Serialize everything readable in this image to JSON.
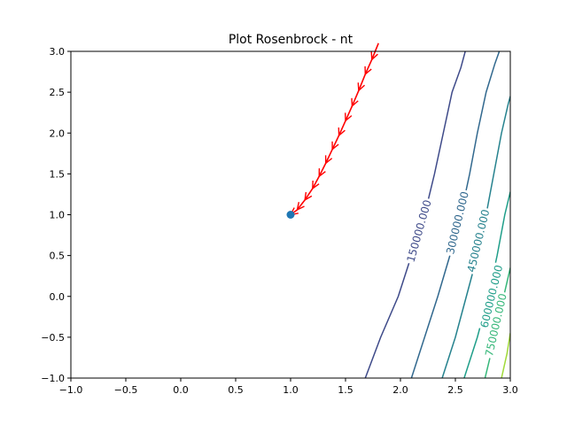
{
  "chart_data": {
    "type": "line",
    "title": "Plot Rosenbrock - nt",
    "xlabel": "",
    "ylabel": "",
    "xlim": [
      -1.0,
      3.0
    ],
    "ylim": [
      -1.0,
      3.0
    ],
    "x_ticks": [
      "−1.0",
      "−0.5",
      "0.0",
      "0.5",
      "1.0",
      "1.5",
      "2.0",
      "2.5",
      "3.0"
    ],
    "x_tick_values": [
      -1.0,
      -0.5,
      0.0,
      0.5,
      1.0,
      1.5,
      2.0,
      2.5,
      3.0
    ],
    "y_ticks": [
      "−1.0",
      "−0.5",
      "0.0",
      "0.5",
      "1.0",
      "1.5",
      "2.0",
      "2.5",
      "3.0"
    ],
    "y_tick_values": [
      -1.0,
      -0.5,
      0.0,
      0.5,
      1.0,
      1.5,
      2.0,
      2.5,
      3.0
    ],
    "grid": false,
    "contours": [
      {
        "label": "150000.000",
        "color": "#3e4a89",
        "x": [
          1.68,
          1.82,
          1.98,
          2.1,
          2.22,
          2.31,
          2.39,
          2.47,
          2.55,
          2.59
        ],
        "y": [
          -1.0,
          -0.5,
          0.0,
          0.5,
          1.0,
          1.5,
          2.0,
          2.5,
          2.8,
          3.0
        ],
        "label_at": [
          2.17,
          0.8
        ]
      },
      {
        "label": "300000.000",
        "color": "#31688e",
        "x": [
          2.1,
          2.22,
          2.34,
          2.45,
          2.55,
          2.63,
          2.7,
          2.78,
          2.86,
          2.9
        ],
        "y": [
          -1.0,
          -0.5,
          0.0,
          0.5,
          1.0,
          1.5,
          2.0,
          2.5,
          2.85,
          3.0
        ],
        "label_at": [
          2.52,
          0.9
        ]
      },
      {
        "label": "450000.000",
        "color": "#26828e",
        "x": [
          2.38,
          2.5,
          2.6,
          2.7,
          2.78,
          2.85,
          2.92,
          2.98,
          3.0
        ],
        "y": [
          -1.0,
          -0.5,
          0.0,
          0.5,
          1.0,
          1.5,
          2.0,
          2.35,
          2.45
        ],
        "label_at": [
          2.71,
          0.68
        ]
      },
      {
        "label": "600000.000",
        "color": "#1f9e89",
        "x": [
          2.58,
          2.7,
          2.8,
          2.88,
          2.95,
          3.0
        ],
        "y": [
          -1.0,
          -0.5,
          0.0,
          0.5,
          1.0,
          1.28
        ],
        "label_at": [
          2.83,
          0.0
        ]
      },
      {
        "label": "750000.000",
        "color": "#35b779",
        "x": [
          2.77,
          2.86,
          2.94,
          3.0
        ],
        "y": [
          -1.0,
          -0.5,
          0.0,
          0.35
        ],
        "label_at": [
          2.87,
          -0.35
        ]
      },
      {
        "label": "",
        "color": "#a0da39",
        "x": [
          2.92,
          2.97,
          3.0
        ],
        "y": [
          -1.0,
          -0.7,
          -0.45
        ],
        "label_at": null
      }
    ],
    "path": {
      "color": "#ff0000",
      "x": [
        1.8,
        1.74,
        1.68,
        1.62,
        1.56,
        1.5,
        1.44,
        1.38,
        1.32,
        1.26,
        1.2,
        1.13,
        1.06,
        1.0
      ],
      "y": [
        3.1,
        2.9,
        2.72,
        2.52,
        2.33,
        2.15,
        1.97,
        1.8,
        1.63,
        1.47,
        1.32,
        1.18,
        1.06,
        1.0
      ]
    },
    "minimum": {
      "x": 1.0,
      "y": 1.0,
      "color": "#1f77b4"
    }
  }
}
